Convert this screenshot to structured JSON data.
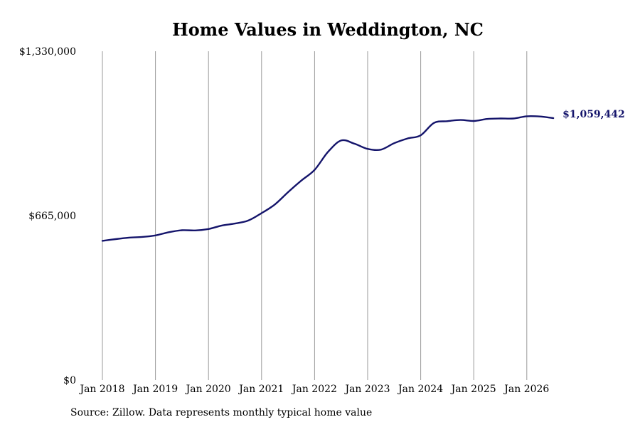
{
  "source_note": "Source: Zillow. Data represents monthly typical home value",
  "colors": {
    "line": "#14146b",
    "grid": "#9a9a9a",
    "text": "#000000"
  },
  "chart_data": {
    "type": "line",
    "title": "Home Values in Weddington, NC",
    "xlabel": "",
    "ylabel": "",
    "ylim": [
      0,
      1330000
    ],
    "y_ticks": [
      {
        "value": 0,
        "label": "$0"
      },
      {
        "value": 665000,
        "label": "$665,000"
      },
      {
        "value": 1330000,
        "label": "$1,330,000"
      }
    ],
    "x_ticks": [
      "Jan 2018",
      "Jan 2019",
      "Jan 2020",
      "Jan 2021",
      "Jan 2022",
      "Jan 2023",
      "Jan 2024",
      "Jan 2025",
      "Jan 2026"
    ],
    "grid": "vertical",
    "end_label": "$1,059,442",
    "series": [
      {
        "x": [
          "2018-01",
          "2018-04",
          "2018-07",
          "2018-10",
          "2019-01",
          "2019-04",
          "2019-07",
          "2019-10",
          "2020-01",
          "2020-04",
          "2020-07",
          "2020-10",
          "2021-01",
          "2021-04",
          "2021-07",
          "2021-10",
          "2022-01",
          "2022-04",
          "2022-07",
          "2022-10",
          "2023-01",
          "2023-04",
          "2023-07",
          "2023-10",
          "2024-01",
          "2024-04",
          "2024-07",
          "2024-10",
          "2025-01",
          "2025-04",
          "2025-07",
          "2025-10",
          "2026-01",
          "2026-04",
          "2026-07"
        ],
        "values": [
          563000,
          570000,
          576000,
          579000,
          585000,
          598000,
          606000,
          605000,
          611000,
          625000,
          633000,
          645000,
          675000,
          710000,
          760000,
          807000,
          850000,
          922000,
          969000,
          956000,
          935000,
          932000,
          958000,
          977000,
          990000,
          1040000,
          1047000,
          1052000,
          1048000,
          1056000,
          1058000,
          1058000,
          1067000,
          1066000,
          1059442
        ]
      }
    ]
  }
}
